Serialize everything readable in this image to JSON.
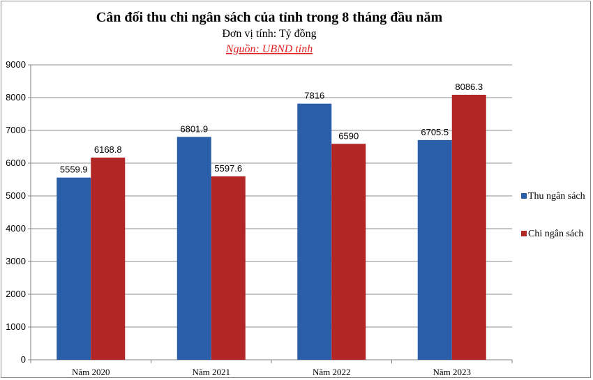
{
  "chart_data": {
    "type": "bar",
    "title": "Cân đối thu chi ngân sách của tỉnh trong 8 tháng đầu năm",
    "subtitle": "Đơn vị tính: Tỷ đồng",
    "source": "Nguồn: UBND tỉnh",
    "categories": [
      "Năm 2020",
      "Năm 2021",
      "Năm 2022",
      "Năm 2023"
    ],
    "series": [
      {
        "name": "Thu ngân sách",
        "color": "#2a5ea8",
        "values": [
          5559.9,
          6801.9,
          7816,
          6705.5
        ],
        "labels": [
          "5559.9",
          "6801.9",
          "7816",
          "6705.5"
        ]
      },
      {
        "name": "Chi ngân sách",
        "color": "#b22725",
        "values": [
          6168.8,
          5597.6,
          6590,
          8086.3
        ],
        "labels": [
          "6168.8",
          "5597.6",
          "6590",
          "8086.3"
        ]
      }
    ],
    "ylim": [
      0,
      9000
    ],
    "yticks": [
      "0",
      "1000",
      "2000",
      "3000",
      "4000",
      "5000",
      "6000",
      "7000",
      "8000",
      "9000"
    ],
    "grid": true,
    "legend_position": "right"
  }
}
